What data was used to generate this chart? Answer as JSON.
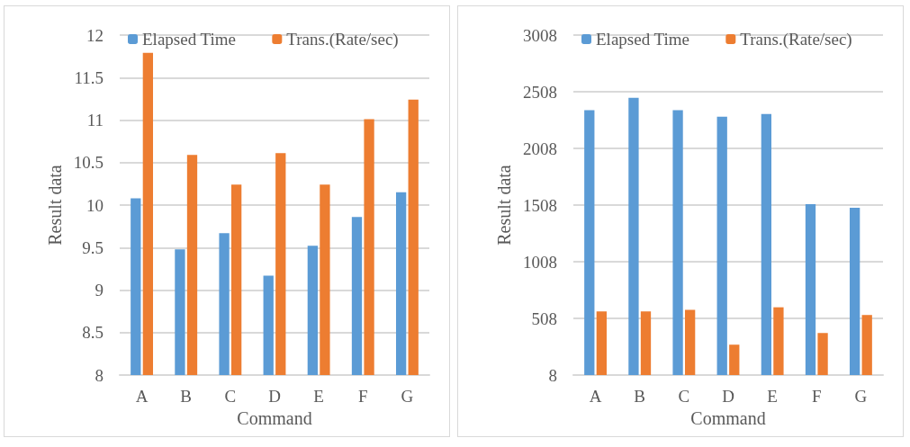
{
  "chart_data": [
    {
      "type": "bar",
      "xlabel": "Command",
      "ylabel": "Result data",
      "categories": [
        "A",
        "B",
        "C",
        "D",
        "E",
        "F",
        "G"
      ],
      "series": [
        {
          "name": "Elapsed Time",
          "color": "#5b9bd5",
          "values": [
            10.08,
            9.48,
            9.67,
            9.17,
            9.52,
            9.86,
            10.15
          ]
        },
        {
          "name": "Trans.(Rate/sec)",
          "color": "#ed7d31",
          "values": [
            11.79,
            10.59,
            10.24,
            10.61,
            10.24,
            11.01,
            11.24
          ]
        }
      ],
      "ylim": [
        8,
        12
      ],
      "yticks": [
        8,
        "8.5",
        9,
        "9.5",
        10,
        "10.5",
        11,
        "11.5",
        12
      ],
      "grid": "y",
      "legend": "top"
    },
    {
      "type": "bar",
      "xlabel": "Command",
      "ylabel": "Result data",
      "categories": [
        "A",
        "B",
        "C",
        "D",
        "E",
        "F",
        "G"
      ],
      "series": [
        {
          "name": "Elapsed Time",
          "color": "#5b9bd5",
          "values": [
            2346,
            2455,
            2346,
            2288,
            2311,
            1515,
            1485
          ]
        },
        {
          "name": "Trans.(Rate/sec)",
          "color": "#ed7d31",
          "values": [
            569,
            569,
            584,
            276,
            606,
            379,
            538
          ]
        }
      ],
      "ylim": [
        8,
        3008
      ],
      "yticks": [
        8,
        508,
        1008,
        1508,
        2008,
        2508,
        3008
      ],
      "grid": "y",
      "legend": "top"
    }
  ]
}
